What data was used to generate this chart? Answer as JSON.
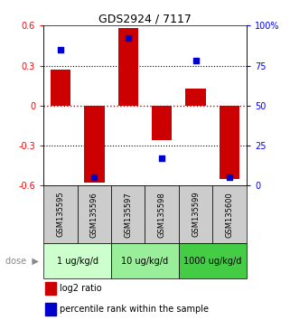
{
  "title": "GDS2924 / 7117",
  "samples": [
    "GSM135595",
    "GSM135596",
    "GSM135597",
    "GSM135598",
    "GSM135599",
    "GSM135600"
  ],
  "log2_ratio": [
    0.27,
    -0.58,
    0.58,
    -0.26,
    0.13,
    -0.55
  ],
  "percentile_rank": [
    85,
    5,
    92,
    17,
    78,
    5
  ],
  "ylim_left": [
    -0.6,
    0.6
  ],
  "ylim_right": [
    0,
    100
  ],
  "yticks_left": [
    -0.6,
    -0.3,
    0.0,
    0.3,
    0.6
  ],
  "yticks_right": [
    0,
    25,
    50,
    75,
    100
  ],
  "ytick_labels_left": [
    "-0.6",
    "-0.3",
    "0",
    "0.3",
    "0.6"
  ],
  "ytick_labels_right": [
    "0",
    "25",
    "50",
    "75",
    "100%"
  ],
  "bar_color": "#cc0000",
  "dot_color": "#0000cc",
  "zero_line_color": "#cc0000",
  "dose_groups": [
    {
      "label": "1 ug/kg/d",
      "start": 0,
      "end": 1,
      "color": "#ccffcc"
    },
    {
      "label": "10 ug/kg/d",
      "start": 2,
      "end": 3,
      "color": "#99ee99"
    },
    {
      "label": "1000 ug/kg/d",
      "start": 4,
      "end": 5,
      "color": "#44cc44"
    }
  ],
  "sample_bg_color": "#cccccc",
  "legend_red_label": "log2 ratio",
  "legend_blue_label": "percentile rank within the sample",
  "bar_width": 0.6,
  "fig_width": 3.21,
  "fig_height": 3.54,
  "dpi": 100
}
